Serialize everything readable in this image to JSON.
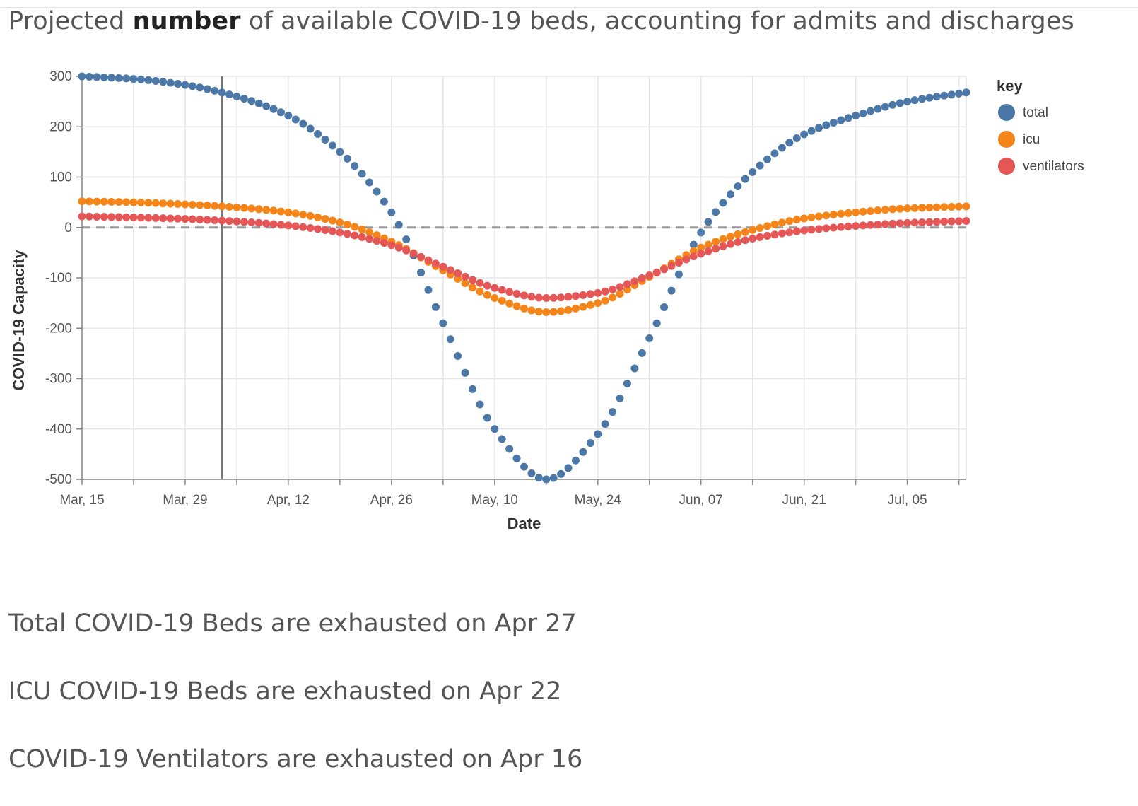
{
  "header": {
    "title_prefix": "Projected ",
    "title_bold": "number",
    "title_suffix": " of available COVID-19 beds, accounting for admits and discharges"
  },
  "chart_data": {
    "type": "scatter",
    "xlabel": "Date",
    "ylabel": "COVID-19 Capacity",
    "x_range": [
      "2020-03-15",
      "2020-07-13"
    ],
    "ylim": [
      -500,
      300
    ],
    "y_ticks": [
      300,
      200,
      100,
      0,
      -100,
      -200,
      -300,
      -400,
      -500
    ],
    "x_ticks": [
      {
        "date": "2020-03-15",
        "label": "Mar, 15"
      },
      {
        "date": "2020-03-29",
        "label": "Mar, 29"
      },
      {
        "date": "2020-04-12",
        "label": "Apr, 12"
      },
      {
        "date": "2020-04-26",
        "label": "Apr, 26"
      },
      {
        "date": "2020-05-10",
        "label": "May, 10"
      },
      {
        "date": "2020-05-24",
        "label": "May, 24"
      },
      {
        "date": "2020-06-07",
        "label": "Jun, 07"
      },
      {
        "date": "2020-06-21",
        "label": "Jun, 21"
      },
      {
        "date": "2020-07-05",
        "label": "Jul, 05"
      }
    ],
    "grid": true,
    "reference_line_y": 0,
    "current_date_marker": "2020-04-03",
    "legend": {
      "title": "key",
      "placement": "right"
    },
    "series": [
      {
        "name": "total",
        "color": "#4c78a8",
        "points": [
          [
            "2020-03-15",
            300
          ],
          [
            "2020-03-22",
            295
          ],
          [
            "2020-03-29",
            283
          ],
          [
            "2020-04-05",
            260
          ],
          [
            "2020-04-12",
            222
          ],
          [
            "2020-04-19",
            150
          ],
          [
            "2020-04-26",
            30
          ],
          [
            "2020-05-03",
            -190
          ],
          [
            "2020-05-10",
            -400
          ],
          [
            "2020-05-17",
            -500
          ],
          [
            "2020-05-24",
            -410
          ],
          [
            "2020-05-31",
            -220
          ],
          [
            "2020-06-07",
            -10
          ],
          [
            "2020-06-14",
            110
          ],
          [
            "2020-06-21",
            185
          ],
          [
            "2020-06-28",
            222
          ],
          [
            "2020-07-05",
            250
          ],
          [
            "2020-07-13",
            268
          ]
        ]
      },
      {
        "name": "icu",
        "color": "#f58518",
        "points": [
          [
            "2020-03-15",
            52
          ],
          [
            "2020-03-22",
            50
          ],
          [
            "2020-03-29",
            46
          ],
          [
            "2020-04-05",
            40
          ],
          [
            "2020-04-12",
            30
          ],
          [
            "2020-04-19",
            10
          ],
          [
            "2020-04-26",
            -28
          ],
          [
            "2020-05-03",
            -85
          ],
          [
            "2020-05-10",
            -140
          ],
          [
            "2020-05-17",
            -168
          ],
          [
            "2020-05-24",
            -150
          ],
          [
            "2020-05-31",
            -98
          ],
          [
            "2020-06-07",
            -40
          ],
          [
            "2020-06-14",
            -5
          ],
          [
            "2020-06-21",
            18
          ],
          [
            "2020-06-28",
            30
          ],
          [
            "2020-07-05",
            38
          ],
          [
            "2020-07-13",
            42
          ]
        ]
      },
      {
        "name": "ventilators",
        "color": "#e45756",
        "points": [
          [
            "2020-03-15",
            22
          ],
          [
            "2020-03-22",
            20
          ],
          [
            "2020-03-29",
            17
          ],
          [
            "2020-04-05",
            12
          ],
          [
            "2020-04-12",
            4
          ],
          [
            "2020-04-19",
            -10
          ],
          [
            "2020-04-26",
            -35
          ],
          [
            "2020-05-03",
            -78
          ],
          [
            "2020-05-10",
            -120
          ],
          [
            "2020-05-17",
            -140
          ],
          [
            "2020-05-24",
            -130
          ],
          [
            "2020-05-31",
            -95
          ],
          [
            "2020-06-07",
            -52
          ],
          [
            "2020-06-14",
            -22
          ],
          [
            "2020-06-21",
            -6
          ],
          [
            "2020-06-28",
            3
          ],
          [
            "2020-07-05",
            9
          ],
          [
            "2020-07-13",
            13
          ]
        ]
      }
    ]
  },
  "summary": {
    "total": "Total COVID-19 Beds are exhausted on Apr 27",
    "icu": "ICU COVID-19 Beds are exhausted on Apr 22",
    "ventilators": "COVID-19 Ventilators are exhausted on Apr 16"
  }
}
